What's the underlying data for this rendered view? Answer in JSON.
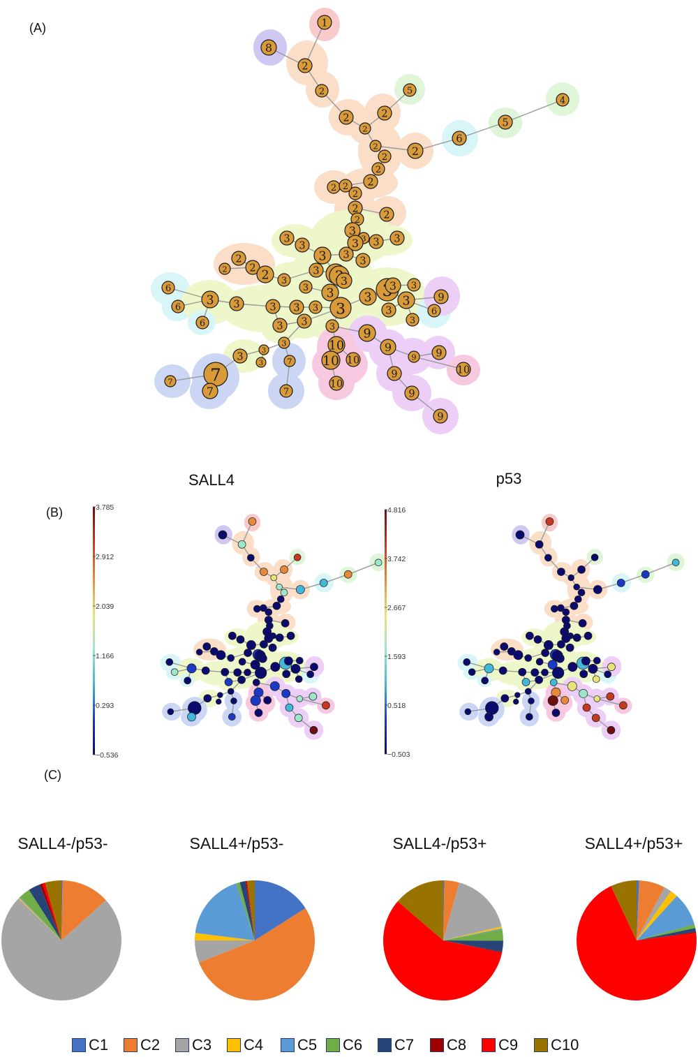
{
  "panels": {
    "a_label": "(A)",
    "b_label": "(B)",
    "c_label": "(C)"
  },
  "panel_b": {
    "maps": [
      {
        "title": "SALL4",
        "colorbar_ticks": [
          "3.785",
          "2.912",
          "2.039",
          "1.166",
          "0.293",
          "−0.536"
        ]
      },
      {
        "title": "p53",
        "colorbar_ticks": [
          "4.816",
          "3.742",
          "2.667",
          "1.593",
          "0.518",
          "−0.503"
        ]
      }
    ]
  },
  "cluster_colors": {
    "1": "#f4a7a7",
    "2": "#f7c9a4",
    "3": "#e2f3a8",
    "4": "#c9f0c0",
    "5": "#c9f0c0",
    "6": "#bff0f2",
    "7": "#a9bcee",
    "8": "#b1a4ec",
    "9": "#e0aef2",
    "10": "#f2a6cc"
  },
  "chart_data": {
    "type": "pie",
    "legend_position": "bottom",
    "categories": [
      "C1",
      "C2",
      "C3",
      "C4",
      "C5",
      "C6",
      "C7",
      "C8",
      "C9",
      "C10"
    ],
    "colors": [
      "#4472c4",
      "#ed7d31",
      "#a5a5a5",
      "#ffc000",
      "#5b9bd5",
      "#70ad47",
      "#264478",
      "#9e0000",
      "#ff0000",
      "#997300"
    ],
    "pies": [
      {
        "title": "SALL4-/p53-",
        "values": [
          0.3,
          13.0,
          74.0,
          0.3,
          0.3,
          3.0,
          3.2,
          0.8,
          0.7,
          4.4
        ]
      },
      {
        "title": "SALL4+/p53-",
        "values": [
          16.0,
          53.0,
          6.0,
          2.0,
          18.0,
          1.0,
          1.5,
          0.3,
          0.2,
          2.0
        ]
      },
      {
        "title": "SALL4-/p53+",
        "values": [
          0.3,
          4.0,
          17.0,
          0.5,
          0.3,
          3.0,
          3.0,
          0.2,
          58.0,
          13.7
        ]
      },
      {
        "title": "SALL4+/p53+",
        "values": [
          0.7,
          7.0,
          2.0,
          2.0,
          9.0,
          1.0,
          1.0,
          0.3,
          70.0,
          7.0
        ]
      }
    ]
  }
}
